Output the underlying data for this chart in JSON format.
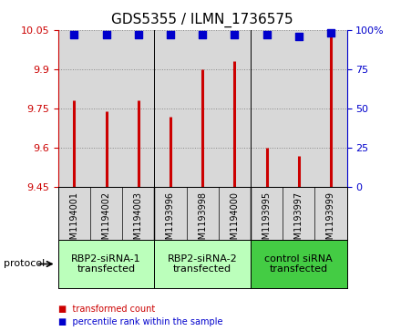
{
  "title": "GDS5355 / ILMN_1736575",
  "samples": [
    "GSM1194001",
    "GSM1194002",
    "GSM1194003",
    "GSM1193996",
    "GSM1193998",
    "GSM1194000",
    "GSM1193995",
    "GSM1193997",
    "GSM1193999"
  ],
  "transformed_counts": [
    9.78,
    9.74,
    9.78,
    9.72,
    9.9,
    9.93,
    9.6,
    9.57,
    10.04
  ],
  "percentile_ranks": [
    97,
    97,
    97,
    97,
    97,
    97,
    97,
    96,
    98
  ],
  "ylim_left": [
    9.45,
    10.05
  ],
  "yticks_left": [
    9.45,
    9.6,
    9.75,
    9.9,
    10.05
  ],
  "ytick_labels_left": [
    "9.45",
    "9.6",
    "9.75",
    "9.9",
    "10.05"
  ],
  "ylim_right": [
    0,
    100
  ],
  "yticks_right": [
    0,
    25,
    50,
    75,
    100
  ],
  "ytick_labels_right": [
    "0",
    "25",
    "50",
    "75",
    "100%"
  ],
  "groups": [
    {
      "label": "RBP2-siRNA-1\ntransfected",
      "start": 0,
      "end": 3,
      "color": "#bbffbb"
    },
    {
      "label": "RBP2-siRNA-2\ntransfected",
      "start": 3,
      "end": 6,
      "color": "#bbffbb"
    },
    {
      "label": "control siRNA\ntransfected",
      "start": 6,
      "end": 9,
      "color": "#44cc44"
    }
  ],
  "group_boundaries": [
    3,
    6
  ],
  "protocol_label": "protocol",
  "bar_color": "#cc0000",
  "dot_color": "#0000cc",
  "legend_bar_label": "transformed count",
  "legend_dot_label": "percentile rank within the sample",
  "background_color": "#ffffff",
  "plot_bg_color": "#d8d8d8",
  "sample_bg_color": "#d8d8d8",
  "grid_color": "#888888",
  "title_fontsize": 11,
  "tick_fontsize": 8,
  "sample_fontsize": 7,
  "group_fontsize": 8
}
